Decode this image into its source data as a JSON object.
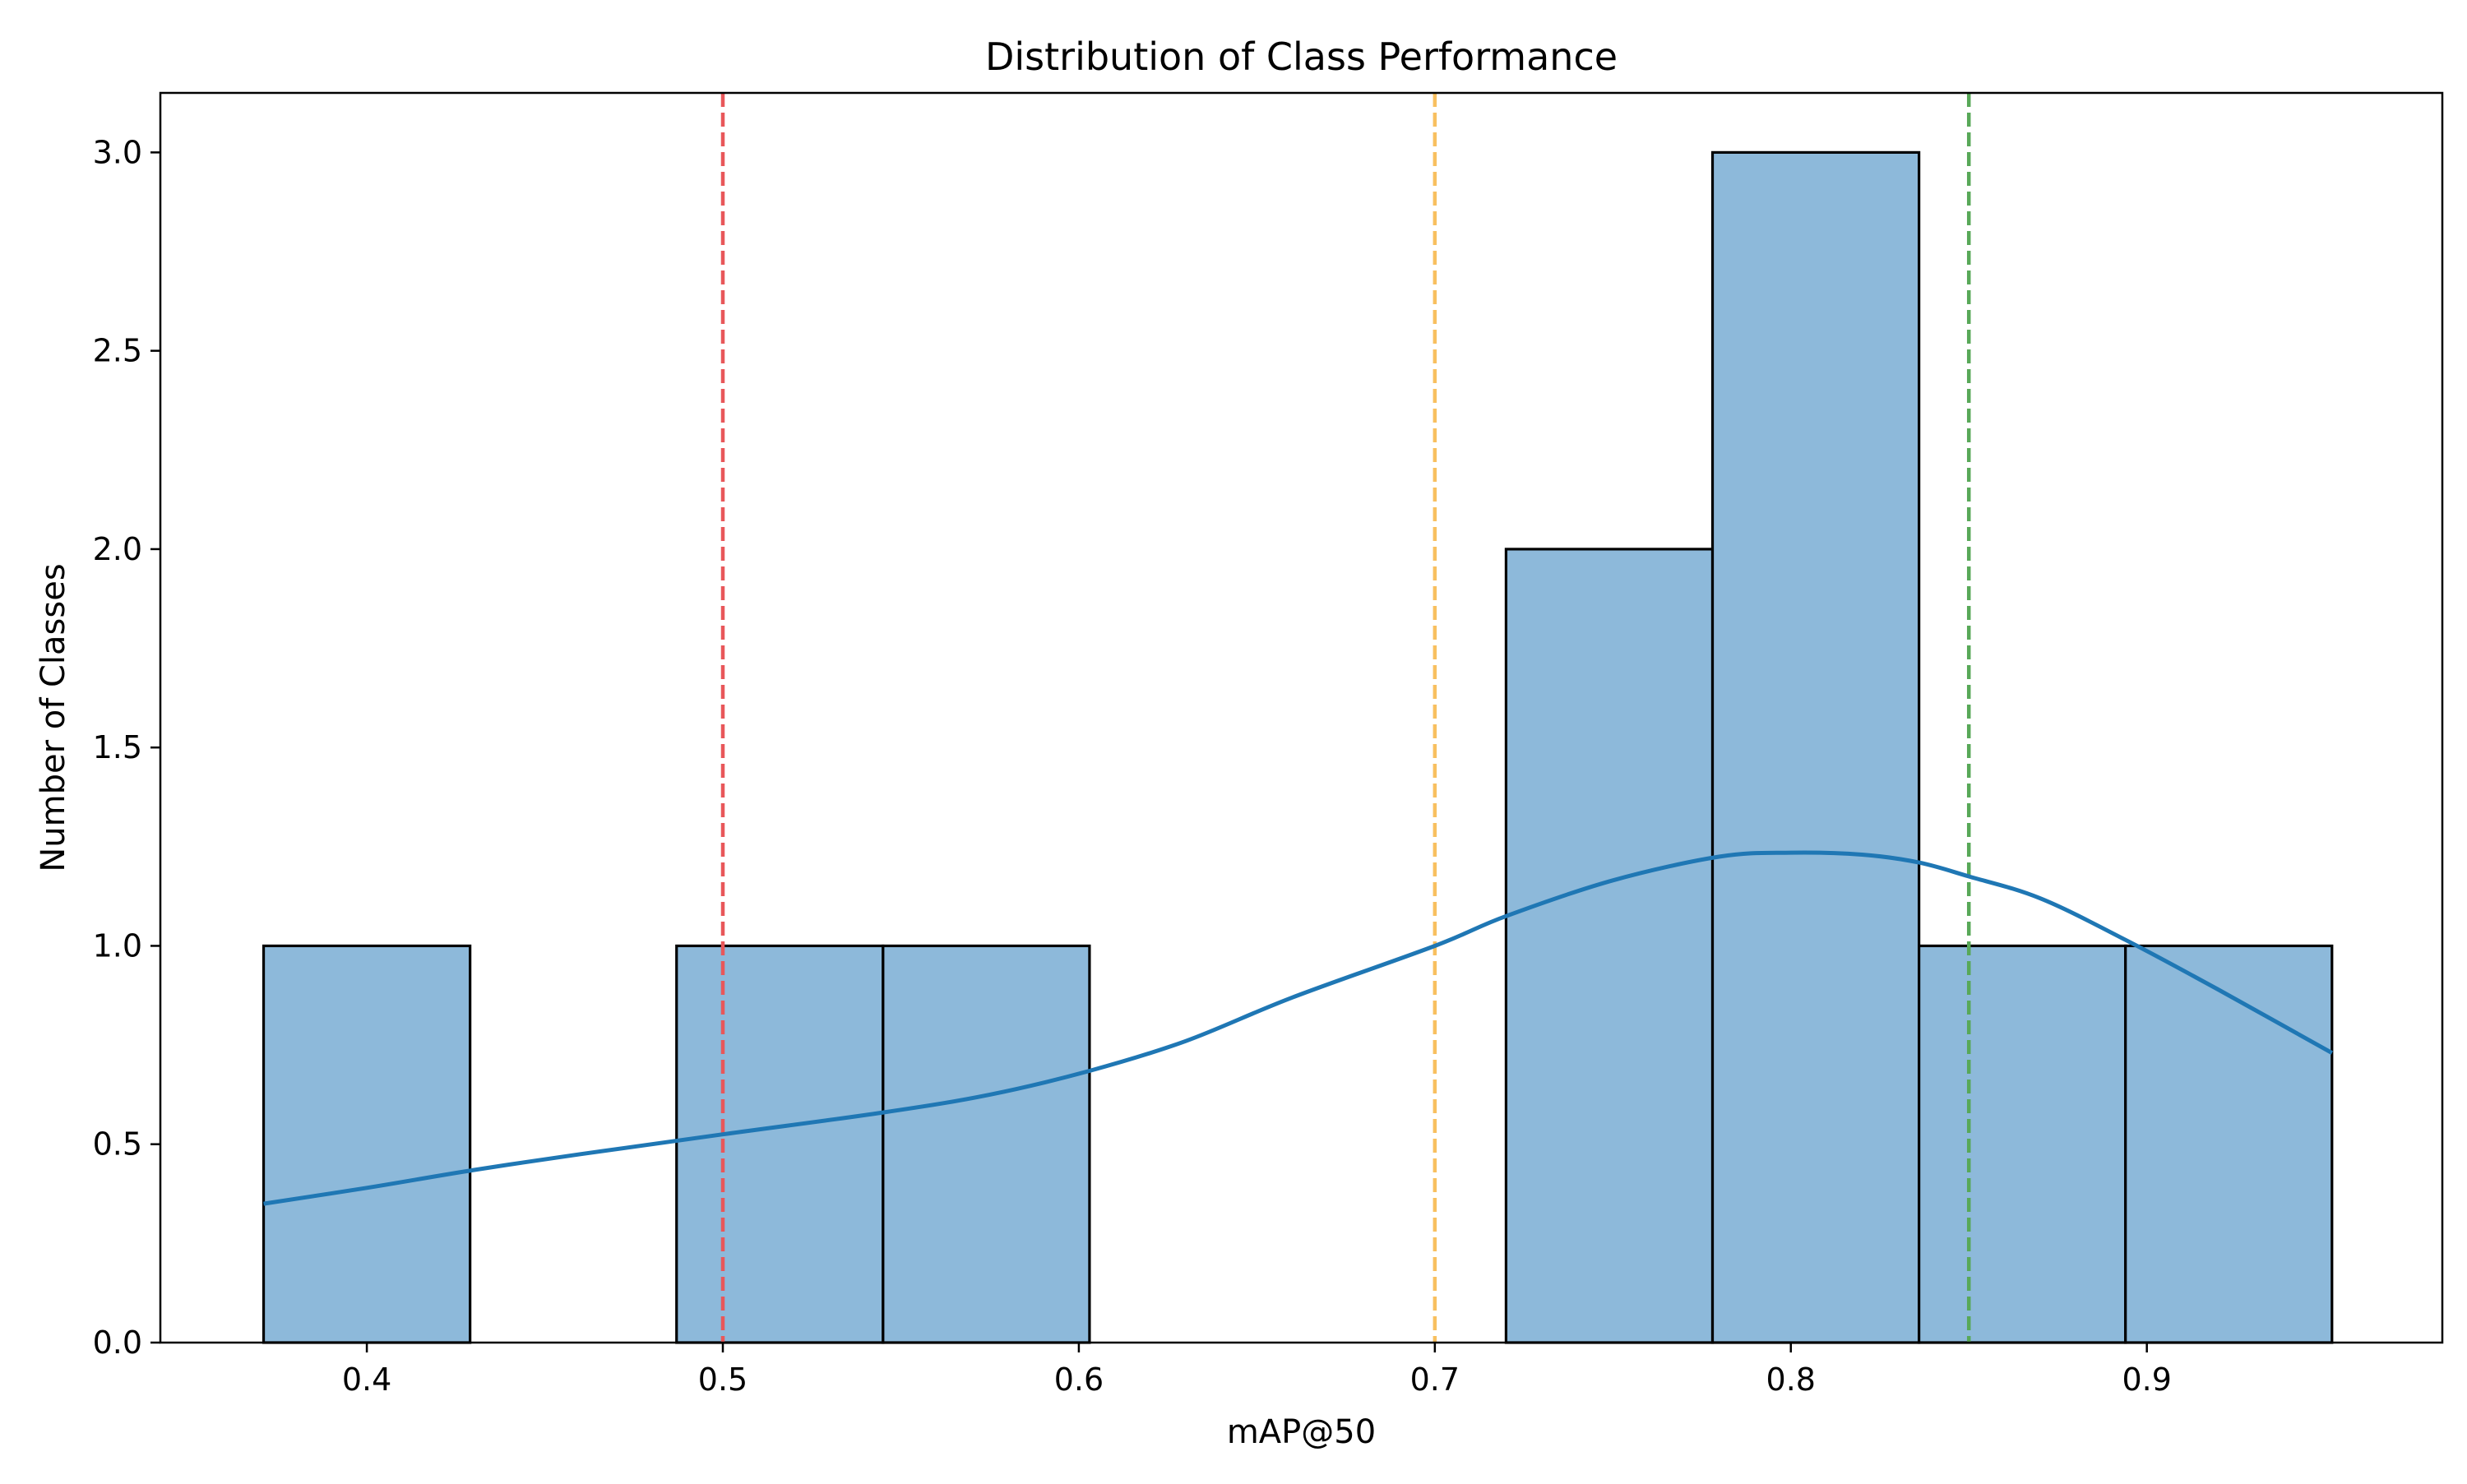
{
  "chart_data": {
    "type": "bar",
    "title": "Distribution of Class Performance",
    "xlabel": "mAP@50",
    "ylabel": "Number of Classes",
    "xlim": [
      0.342,
      0.983
    ],
    "ylim": [
      0,
      3.15
    ],
    "x_ticks": [
      0.4,
      0.5,
      0.6,
      0.7,
      0.8,
      0.9
    ],
    "y_ticks": [
      0.0,
      0.5,
      1.0,
      1.5,
      2.0,
      2.5,
      3.0
    ],
    "grid": false,
    "histogram_bins": [
      {
        "x0": 0.371,
        "x1": 0.429,
        "count": 1
      },
      {
        "x0": 0.429,
        "x1": 0.487,
        "count": 0
      },
      {
        "x0": 0.487,
        "x1": 0.545,
        "count": 1
      },
      {
        "x0": 0.545,
        "x1": 0.603,
        "count": 1
      },
      {
        "x0": 0.603,
        "x1": 0.662,
        "count": 0
      },
      {
        "x0": 0.662,
        "x1": 0.72,
        "count": 0
      },
      {
        "x0": 0.72,
        "x1": 0.778,
        "count": 2
      },
      {
        "x0": 0.778,
        "x1": 0.836,
        "count": 3
      },
      {
        "x0": 0.836,
        "x1": 0.894,
        "count": 1
      },
      {
        "x0": 0.894,
        "x1": 0.952,
        "count": 1
      }
    ],
    "kde_curve": [
      [
        0.371,
        0.35
      ],
      [
        0.4,
        0.39
      ],
      [
        0.43,
        0.435
      ],
      [
        0.46,
        0.475
      ],
      [
        0.5,
        0.525
      ],
      [
        0.545,
        0.58
      ],
      [
        0.575,
        0.625
      ],
      [
        0.603,
        0.685
      ],
      [
        0.63,
        0.76
      ],
      [
        0.66,
        0.87
      ],
      [
        0.7,
        1.0
      ],
      [
        0.72,
        1.075
      ],
      [
        0.75,
        1.165
      ],
      [
        0.78,
        1.225
      ],
      [
        0.8,
        1.235
      ],
      [
        0.82,
        1.23
      ],
      [
        0.836,
        1.21
      ],
      [
        0.85,
        1.175
      ],
      [
        0.87,
        1.12
      ],
      [
        0.894,
        1.015
      ],
      [
        0.92,
        0.89
      ],
      [
        0.952,
        0.73
      ]
    ],
    "reference_lines": [
      {
        "x": 0.5,
        "color": "#e8575a"
      },
      {
        "x": 0.7,
        "color": "#f8c060"
      },
      {
        "x": 0.85,
        "color": "#58a858"
      }
    ],
    "colors": {
      "bar_fill": "#8db9da",
      "bar_edge": "#000000",
      "kde_line": "#1f77b4"
    }
  }
}
